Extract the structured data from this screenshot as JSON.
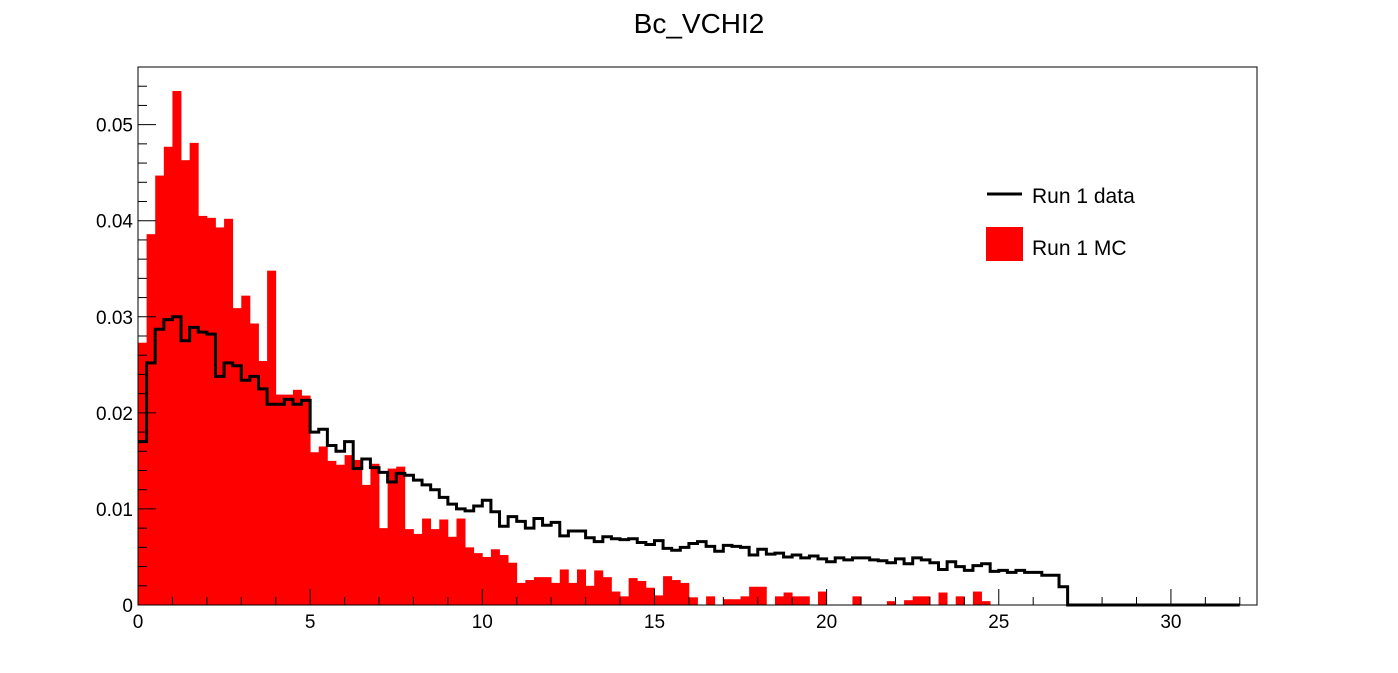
{
  "chart_data": {
    "type": "histogram",
    "title": "Bc_VCHI2",
    "xlabel": "",
    "ylabel": "",
    "xlim": [
      0,
      32.5
    ],
    "ylim": [
      0,
      0.056
    ],
    "x_ticks": [
      "0",
      "5",
      "10",
      "15",
      "20",
      "25",
      "30"
    ],
    "y_ticks": [
      "0",
      "0.01",
      "0.02",
      "0.03",
      "0.04",
      "0.05"
    ],
    "grid": false,
    "legend_position": "top-right",
    "bin_width": 0.25,
    "series": [
      {
        "name": "Run 1 MC",
        "style": "filled",
        "color": "#ff0000",
        "values": [
          0.0273,
          0.0386,
          0.0447,
          0.0477,
          0.0535,
          0.0463,
          0.0481,
          0.0405,
          0.0403,
          0.0393,
          0.0402,
          0.0309,
          0.0322,
          0.0293,
          0.0254,
          0.0348,
          0.0219,
          0.0219,
          0.0224,
          0.0218,
          0.0159,
          0.0165,
          0.015,
          0.0146,
          0.0156,
          0.0151,
          0.0125,
          0.0147,
          0.008,
          0.0142,
          0.0144,
          0.0079,
          0.0074,
          0.009,
          0.0079,
          0.0089,
          0.0071,
          0.009,
          0.006,
          0.0054,
          0.005,
          0.0058,
          0.0052,
          0.0044,
          0.0023,
          0.0026,
          0.0029,
          0.0029,
          0.0023,
          0.0037,
          0.0023,
          0.0037,
          0.002,
          0.0036,
          0.0029,
          0.0014,
          0.0009,
          0.0028,
          0.0025,
          0.0018,
          0.001,
          0.003,
          0.0026,
          0.0023,
          0.0008,
          0.0,
          0.0009,
          0.0,
          0.0006,
          0.0006,
          0.0009,
          0.0019,
          0.0019,
          0.0,
          0.0009,
          0.0013,
          0.0009,
          0.0009,
          0.0,
          0.0014,
          0.0,
          0.0,
          0.0,
          0.0009,
          0.0,
          0.0,
          0.0,
          0.0004,
          0.0,
          0.0005,
          0.0009,
          0.0009,
          0.0,
          0.0013,
          0.0,
          0.0009,
          0.0,
          0.0014,
          0.0004,
          0.0,
          0.0,
          0.0,
          0.0,
          0.0,
          0.0,
          0.0,
          0.0,
          0.0,
          0.0,
          0.0
        ]
      },
      {
        "name": "Run 1 data",
        "style": "outline",
        "color": "#000000",
        "values": [
          0.017,
          0.0252,
          0.0287,
          0.0297,
          0.03,
          0.0275,
          0.0289,
          0.0284,
          0.0282,
          0.0238,
          0.0252,
          0.0249,
          0.0234,
          0.0238,
          0.0225,
          0.0209,
          0.0209,
          0.0214,
          0.0209,
          0.0213,
          0.018,
          0.0183,
          0.0166,
          0.016,
          0.017,
          0.0142,
          0.0152,
          0.0143,
          0.0138,
          0.0128,
          0.0137,
          0.0135,
          0.013,
          0.0125,
          0.012,
          0.0112,
          0.0105,
          0.01,
          0.0098,
          0.0103,
          0.0109,
          0.0097,
          0.0082,
          0.0092,
          0.0087,
          0.008,
          0.009,
          0.0083,
          0.0086,
          0.0072,
          0.0077,
          0.0077,
          0.007,
          0.0066,
          0.0071,
          0.0069,
          0.0068,
          0.0069,
          0.0065,
          0.0063,
          0.0067,
          0.0059,
          0.0057,
          0.006,
          0.0064,
          0.0066,
          0.0061,
          0.0056,
          0.0062,
          0.0061,
          0.006,
          0.0052,
          0.0058,
          0.0053,
          0.0054,
          0.005,
          0.0052,
          0.0049,
          0.0051,
          0.0048,
          0.0045,
          0.0049,
          0.0047,
          0.0049,
          0.0049,
          0.0047,
          0.0046,
          0.0044,
          0.0048,
          0.0043,
          0.0049,
          0.0047,
          0.0044,
          0.0037,
          0.0045,
          0.004,
          0.0036,
          0.0041,
          0.0043,
          0.0035,
          0.0036,
          0.0034,
          0.0036,
          0.0034,
          0.0034,
          0.0031,
          0.0031,
          0.0019,
          0.0,
          0.0,
          0.0,
          0.0,
          0.0,
          0.0,
          0.0,
          0.0,
          0.0,
          0.0,
          0.0,
          0.0,
          0.0,
          0.0,
          0.0,
          0.0,
          0.0,
          0.0,
          0.0,
          0.0
        ]
      }
    ]
  }
}
